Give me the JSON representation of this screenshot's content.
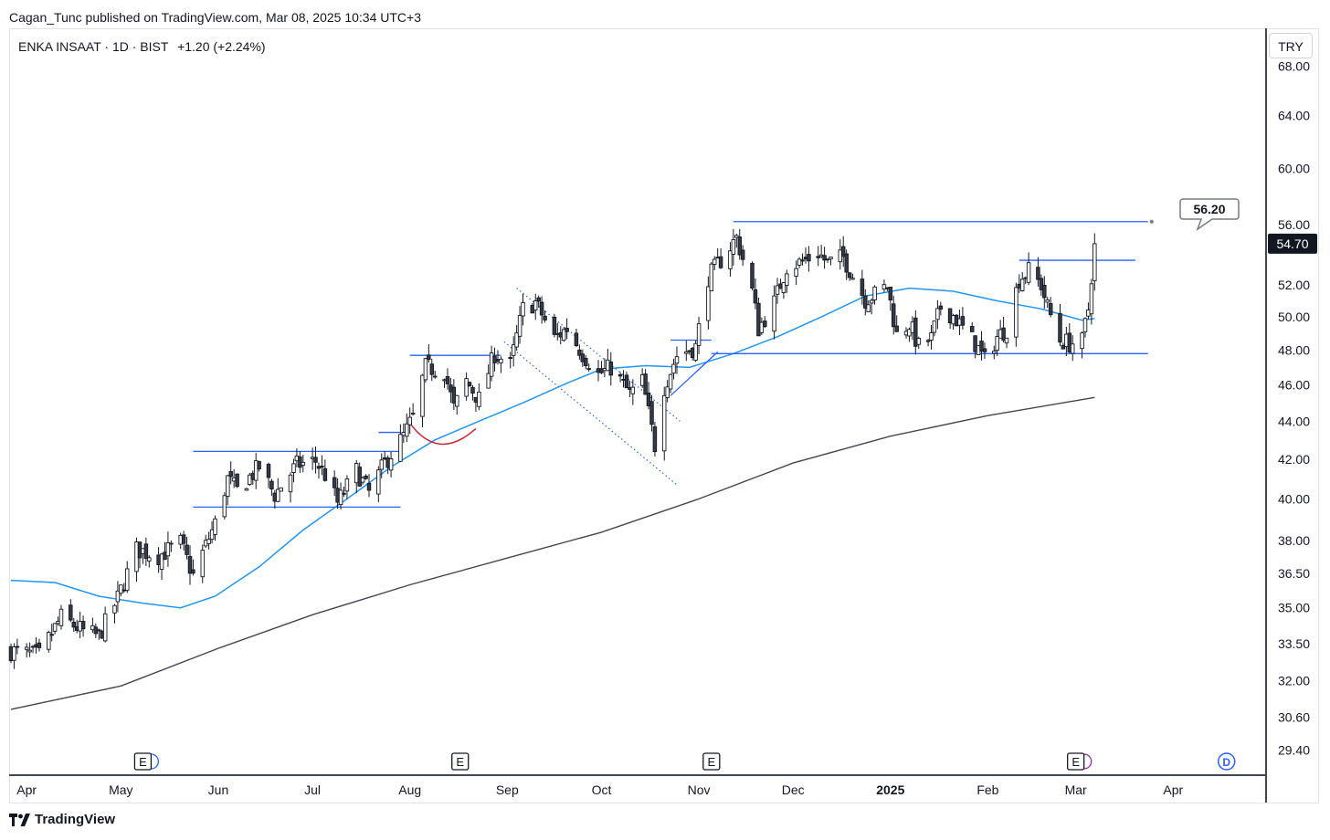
{
  "header": {
    "published_by": "Cagan_Tunc published on TradingView.com, Mar 08, 2025 10:34 UTC+3"
  },
  "legend": {
    "symbol": "ENKA INSAAT · 1D · BIST",
    "change": "+1.20 (+2.24%)"
  },
  "currency": "TRY",
  "footer": {
    "brand": "TradingView"
  },
  "colors": {
    "bull": "#ffffff",
    "bear": "#363a45",
    "wick": "#131722",
    "ma50": "#2196f3",
    "ma200": "#434651",
    "drawing": "#2962ff",
    "arc": "#d0243d"
  },
  "chart_data": {
    "type": "candlestick",
    "symbol": "ENKA INSAAT",
    "interval": "1D",
    "exchange": "BIST",
    "last_price": 54.7,
    "last_price_label": "54.70",
    "target_label": "56.20",
    "y_scale": "log",
    "ylim": [
      28.6,
      71.0
    ],
    "y_ticks": [
      "68.00",
      "64.00",
      "60.00",
      "56.00",
      "52.00",
      "50.00",
      "48.00",
      "46.00",
      "44.00",
      "42.00",
      "40.00",
      "38.00",
      "36.50",
      "35.00",
      "33.50",
      "32.00",
      "30.60",
      "29.40"
    ],
    "y_tick_values": [
      68,
      64,
      60,
      56,
      52,
      50,
      48,
      46,
      44,
      42,
      40,
      38,
      36.5,
      35,
      33.5,
      32,
      30.6,
      29.4
    ],
    "x_ticks": [
      {
        "label": "Apr",
        "date": "2024-04-01"
      },
      {
        "label": "May",
        "date": "2024-05-01"
      },
      {
        "label": "Jun",
        "date": "2024-06-01"
      },
      {
        "label": "Jul",
        "date": "2024-07-01"
      },
      {
        "label": "Aug",
        "date": "2024-08-01"
      },
      {
        "label": "Sep",
        "date": "2024-09-01"
      },
      {
        "label": "Oct",
        "date": "2024-10-01"
      },
      {
        "label": "Nov",
        "date": "2024-11-01"
      },
      {
        "label": "Dec",
        "date": "2024-12-01"
      },
      {
        "label": "2025",
        "date": "2025-01-01",
        "bold": true
      },
      {
        "label": "Feb",
        "date": "2025-02-01"
      },
      {
        "label": "Mar",
        "date": "2025-03-01"
      },
      {
        "label": "Apr",
        "date": "2025-04-01"
      }
    ],
    "x_range": [
      "2024-03-27",
      "2025-04-30"
    ],
    "close_path": [
      [
        "2024-03-27",
        33.2
      ],
      [
        "2024-04-05",
        33.0
      ],
      [
        "2024-04-12",
        34.6
      ],
      [
        "2024-04-19",
        34.0
      ],
      [
        "2024-04-24",
        33.8
      ],
      [
        "2024-04-30",
        35.4
      ],
      [
        "2024-05-06",
        37.6
      ],
      [
        "2024-05-13",
        37.3
      ],
      [
        "2024-05-20",
        37.9
      ],
      [
        "2024-05-24",
        36.4
      ],
      [
        "2024-05-31",
        38.8
      ],
      [
        "2024-06-04",
        41.0
      ],
      [
        "2024-06-07",
        40.4
      ],
      [
        "2024-06-14",
        41.6
      ],
      [
        "2024-06-19",
        40.2
      ],
      [
        "2024-06-26",
        41.7
      ],
      [
        "2024-07-02",
        41.9
      ],
      [
        "2024-07-05",
        41.2
      ],
      [
        "2024-07-09",
        39.8
      ],
      [
        "2024-07-15",
        41.4
      ],
      [
        "2024-07-19",
        40.3
      ],
      [
        "2024-07-24",
        41.8
      ],
      [
        "2024-07-30",
        43.2
      ],
      [
        "2024-08-02",
        44.2
      ],
      [
        "2024-08-06",
        47.0
      ],
      [
        "2024-08-12",
        46.8
      ],
      [
        "2024-08-15",
        44.7
      ],
      [
        "2024-08-19",
        46.2
      ],
      [
        "2024-08-23",
        45.2
      ],
      [
        "2024-08-28",
        47.8
      ],
      [
        "2024-09-02",
        47.1
      ],
      [
        "2024-09-06",
        50.5
      ],
      [
        "2024-09-10",
        50.9
      ],
      [
        "2024-09-16",
        48.7
      ],
      [
        "2024-09-20",
        49.3
      ],
      [
        "2024-09-25",
        47.8
      ],
      [
        "2024-09-30",
        46.6
      ],
      [
        "2024-10-04",
        47.0
      ],
      [
        "2024-10-10",
        45.5
      ],
      [
        "2024-10-14",
        46.2
      ],
      [
        "2024-10-18",
        42.7
      ],
      [
        "2024-10-21",
        45.9
      ],
      [
        "2024-10-25",
        47.7
      ],
      [
        "2024-10-31",
        48.2
      ],
      [
        "2024-11-04",
        52.5
      ],
      [
        "2024-11-08",
        53.6
      ],
      [
        "2024-11-13",
        55.1
      ],
      [
        "2024-11-18",
        51.6
      ],
      [
        "2024-11-20",
        49.3
      ],
      [
        "2024-11-25",
        50.9
      ],
      [
        "2024-11-29",
        53.2
      ],
      [
        "2024-12-04",
        53.5
      ],
      [
        "2024-12-09",
        54.1
      ],
      [
        "2024-12-12",
        53.4
      ],
      [
        "2024-12-17",
        53.8
      ],
      [
        "2024-12-20",
        52.6
      ],
      [
        "2024-12-24",
        51.1
      ],
      [
        "2024-12-27",
        51.4
      ],
      [
        "2024-12-31",
        51.9
      ],
      [
        "2025-01-03",
        48.9
      ],
      [
        "2025-01-07",
        49.6
      ],
      [
        "2025-01-10",
        48.2
      ],
      [
        "2025-01-14",
        48.7
      ],
      [
        "2025-01-17",
        50.6
      ],
      [
        "2025-01-21",
        50.1
      ],
      [
        "2025-01-24",
        49.3
      ],
      [
        "2025-01-28",
        48.4
      ],
      [
        "2025-01-31",
        47.4
      ],
      [
        "2025-02-04",
        48.8
      ],
      [
        "2025-02-07",
        49.3
      ],
      [
        "2025-02-11",
        52.4
      ],
      [
        "2025-02-14",
        52.9
      ],
      [
        "2025-02-18",
        52.0
      ],
      [
        "2025-02-20",
        50.6
      ],
      [
        "2025-02-24",
        48.6
      ],
      [
        "2025-02-27",
        48.4
      ],
      [
        "2025-03-03",
        48.5
      ],
      [
        "2025-03-05",
        50.5
      ],
      [
        "2025-03-07",
        54.7
      ]
    ],
    "series": [
      {
        "name": "",
        "kind": "moving_average_short",
        "points": [
          [
            "2024-03-27",
            36.2
          ],
          [
            "2024-04-10",
            36.1
          ],
          [
            "2024-04-24",
            35.5
          ],
          [
            "2024-05-08",
            35.2
          ],
          [
            "2024-05-20",
            35.0
          ],
          [
            "2024-05-31",
            35.5
          ],
          [
            "2024-06-14",
            36.8
          ],
          [
            "2024-06-28",
            38.5
          ],
          [
            "2024-07-12",
            40.0
          ],
          [
            "2024-07-26",
            41.6
          ],
          [
            "2024-08-09",
            43.0
          ],
          [
            "2024-08-23",
            44.0
          ],
          [
            "2024-09-06",
            45.0
          ],
          [
            "2024-09-20",
            46.1
          ],
          [
            "2024-10-01",
            46.9
          ],
          [
            "2024-10-15",
            47.1
          ],
          [
            "2024-10-29",
            47.0
          ],
          [
            "2024-11-12",
            47.8
          ],
          [
            "2024-11-26",
            48.8
          ],
          [
            "2024-12-10",
            50.0
          ],
          [
            "2024-12-24",
            51.3
          ],
          [
            "2025-01-07",
            51.8
          ],
          [
            "2025-01-21",
            51.6
          ],
          [
            "2025-02-04",
            51.0
          ],
          [
            "2025-02-18",
            50.5
          ],
          [
            "2025-03-03",
            49.8
          ],
          [
            "2025-03-07",
            49.9
          ]
        ]
      },
      {
        "name": "",
        "kind": "moving_average_long",
        "points": [
          [
            "2024-03-27",
            30.9
          ],
          [
            "2024-05-01",
            31.8
          ],
          [
            "2024-06-01",
            33.3
          ],
          [
            "2024-07-01",
            34.7
          ],
          [
            "2024-08-01",
            36.0
          ],
          [
            "2024-09-01",
            37.2
          ],
          [
            "2024-10-01",
            38.4
          ],
          [
            "2024-11-01",
            40.0
          ],
          [
            "2024-12-01",
            41.8
          ],
          [
            "2025-01-01",
            43.2
          ],
          [
            "2025-02-01",
            44.3
          ],
          [
            "2025-03-07",
            45.3
          ]
        ]
      }
    ],
    "drawings": [
      {
        "kind": "horizontal",
        "from": "2024-11-12",
        "to": "2025-03-24",
        "price": 56.2
      },
      {
        "kind": "horizontal",
        "from": "2024-11-05",
        "to": "2025-03-24",
        "price": 47.8
      },
      {
        "kind": "horizontal",
        "from": "2025-02-11",
        "to": "2025-03-20",
        "price": 53.6
      },
      {
        "kind": "horizontal",
        "from": "2024-05-24",
        "to": "2024-07-29",
        "price": 42.4
      },
      {
        "kind": "horizontal",
        "from": "2024-05-24",
        "to": "2024-07-29",
        "price": 39.6
      },
      {
        "kind": "horizontal",
        "from": "2024-07-22",
        "to": "2024-07-29",
        "price": 43.4
      },
      {
        "kind": "horizontal",
        "from": "2024-08-01",
        "to": "2024-08-30",
        "price": 47.7
      },
      {
        "kind": "horizontal",
        "from": "2024-10-23",
        "to": "2024-11-05",
        "price": 48.6
      },
      {
        "kind": "trend",
        "from": [
          "2024-10-23",
          45.4
        ],
        "to": [
          "2024-11-07",
          47.9
        ]
      },
      {
        "kind": "channel_dotted",
        "from": [
          "2024-09-04",
          51.8
        ],
        "to": [
          "2024-10-26",
          44.0
        ]
      },
      {
        "kind": "channel_dotted",
        "from": [
          "2024-08-31",
          48.5
        ],
        "to": [
          "2024-10-25",
          40.7
        ]
      },
      {
        "kind": "arc",
        "points": [
          [
            "2024-08-01",
            43.9
          ],
          [
            "2024-08-10",
            42.5
          ],
          [
            "2024-08-22",
            43.6
          ]
        ]
      }
    ],
    "events": [
      {
        "label": "E",
        "date": "2024-05-08",
        "with_dividend": true
      },
      {
        "label": "E",
        "date": "2024-08-17"
      },
      {
        "label": "E",
        "date": "2024-11-05"
      },
      {
        "label": "E",
        "date": "2025-03-01",
        "with_split": true
      },
      {
        "label": "D",
        "date": "2025-04-18"
      }
    ]
  }
}
